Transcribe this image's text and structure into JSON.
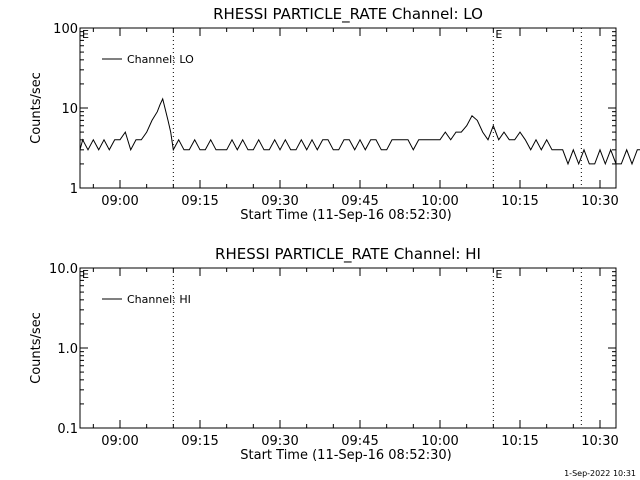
{
  "footer": {
    "stamp": "1-Sep-2022 10:31"
  },
  "chart_data": [
    {
      "type": "line",
      "title": "RHESSI PARTICLE_RATE Channel: LO",
      "xlabel": "Start Time (11-Sep-16 08:52:30)",
      "ylabel": "Counts/sec",
      "y_scale": "log",
      "ylim": [
        1,
        100
      ],
      "yticks": [
        "1",
        "10",
        "100"
      ],
      "xticks": [
        "09:00",
        "09:15",
        "09:30",
        "09:45",
        "10:00",
        "10:15",
        "10:30"
      ],
      "x_range_min": [
        "08:52:30",
        "10:33:00"
      ],
      "legend": {
        "position": "top-left",
        "label": "Channel: LO"
      },
      "flag_lines": [
        "09:10:00",
        "10:10:00",
        "10:26:30"
      ],
      "flag_labels": [
        {
          "x": "08:52:30",
          "text": "E"
        },
        {
          "x": "10:10:00",
          "text": "E"
        }
      ],
      "series": [
        {
          "x_min": [
            52.5,
            53,
            54,
            55,
            56,
            57,
            58,
            59,
            60,
            61,
            62,
            63,
            64,
            65,
            66,
            67,
            67.5,
            68,
            69,
            69.5,
            70,
            71,
            72,
            73,
            74,
            75,
            76,
            77,
            78,
            79,
            80,
            81,
            82,
            83,
            84,
            85,
            86,
            87,
            88,
            89,
            90,
            91,
            92,
            93,
            94,
            95,
            96,
            97,
            98,
            99,
            100,
            101,
            102,
            103,
            104,
            105,
            106,
            107,
            108,
            109,
            110,
            111,
            112,
            113,
            114,
            115,
            116,
            117,
            118,
            119,
            120,
            121,
            122,
            123,
            124,
            125,
            126,
            127,
            128,
            129,
            130,
            131,
            132,
            133,
            134,
            135,
            136,
            137,
            138,
            139,
            140,
            141,
            142,
            143,
            144,
            145,
            146,
            147,
            148,
            149,
            150,
            151,
            152,
            153,
            154,
            155,
            156,
            157,
            158
          ],
          "y": [
            3,
            4,
            3,
            4,
            3,
            4,
            3,
            4,
            4,
            5,
            3,
            4,
            4,
            5,
            7,
            9,
            11,
            13,
            7,
            5,
            3,
            4,
            3,
            3,
            4,
            3,
            3,
            4,
            3,
            3,
            3,
            4,
            3,
            4,
            3,
            3,
            4,
            3,
            3,
            4,
            3,
            4,
            3,
            3,
            4,
            3,
            4,
            3,
            4,
            4,
            3,
            3,
            4,
            4,
            3,
            4,
            3,
            4,
            4,
            3,
            3,
            4,
            4,
            4,
            4,
            3,
            4,
            4,
            4,
            4,
            4,
            5,
            4,
            5,
            5,
            6,
            8,
            7,
            5,
            4,
            6,
            4,
            5,
            4,
            4,
            5,
            4,
            3,
            4,
            3,
            4,
            3,
            3,
            3,
            2,
            3,
            2,
            3,
            2,
            2,
            3,
            2,
            3,
            2,
            2,
            3,
            2,
            3,
            3
          ]
        }
      ]
    },
    {
      "type": "line",
      "title": "RHESSI PARTICLE_RATE Channel: HI",
      "xlabel": "Start Time (11-Sep-16 08:52:30)",
      "ylabel": "Counts/sec",
      "y_scale": "log",
      "ylim": [
        0.1,
        10
      ],
      "yticks": [
        "0.1",
        "1.0",
        "10.0"
      ],
      "xticks": [
        "09:00",
        "09:15",
        "09:30",
        "09:45",
        "10:00",
        "10:15",
        "10:30"
      ],
      "x_range_min": [
        "08:52:30",
        "10:33:00"
      ],
      "legend": {
        "position": "top-left",
        "label": "Channel: HI"
      },
      "flag_lines": [
        "09:10:00",
        "10:10:00",
        "10:26:30"
      ],
      "flag_labels": [
        {
          "x": "08:52:30",
          "text": "E"
        },
        {
          "x": "10:10:00",
          "text": "E"
        }
      ],
      "series": []
    }
  ]
}
